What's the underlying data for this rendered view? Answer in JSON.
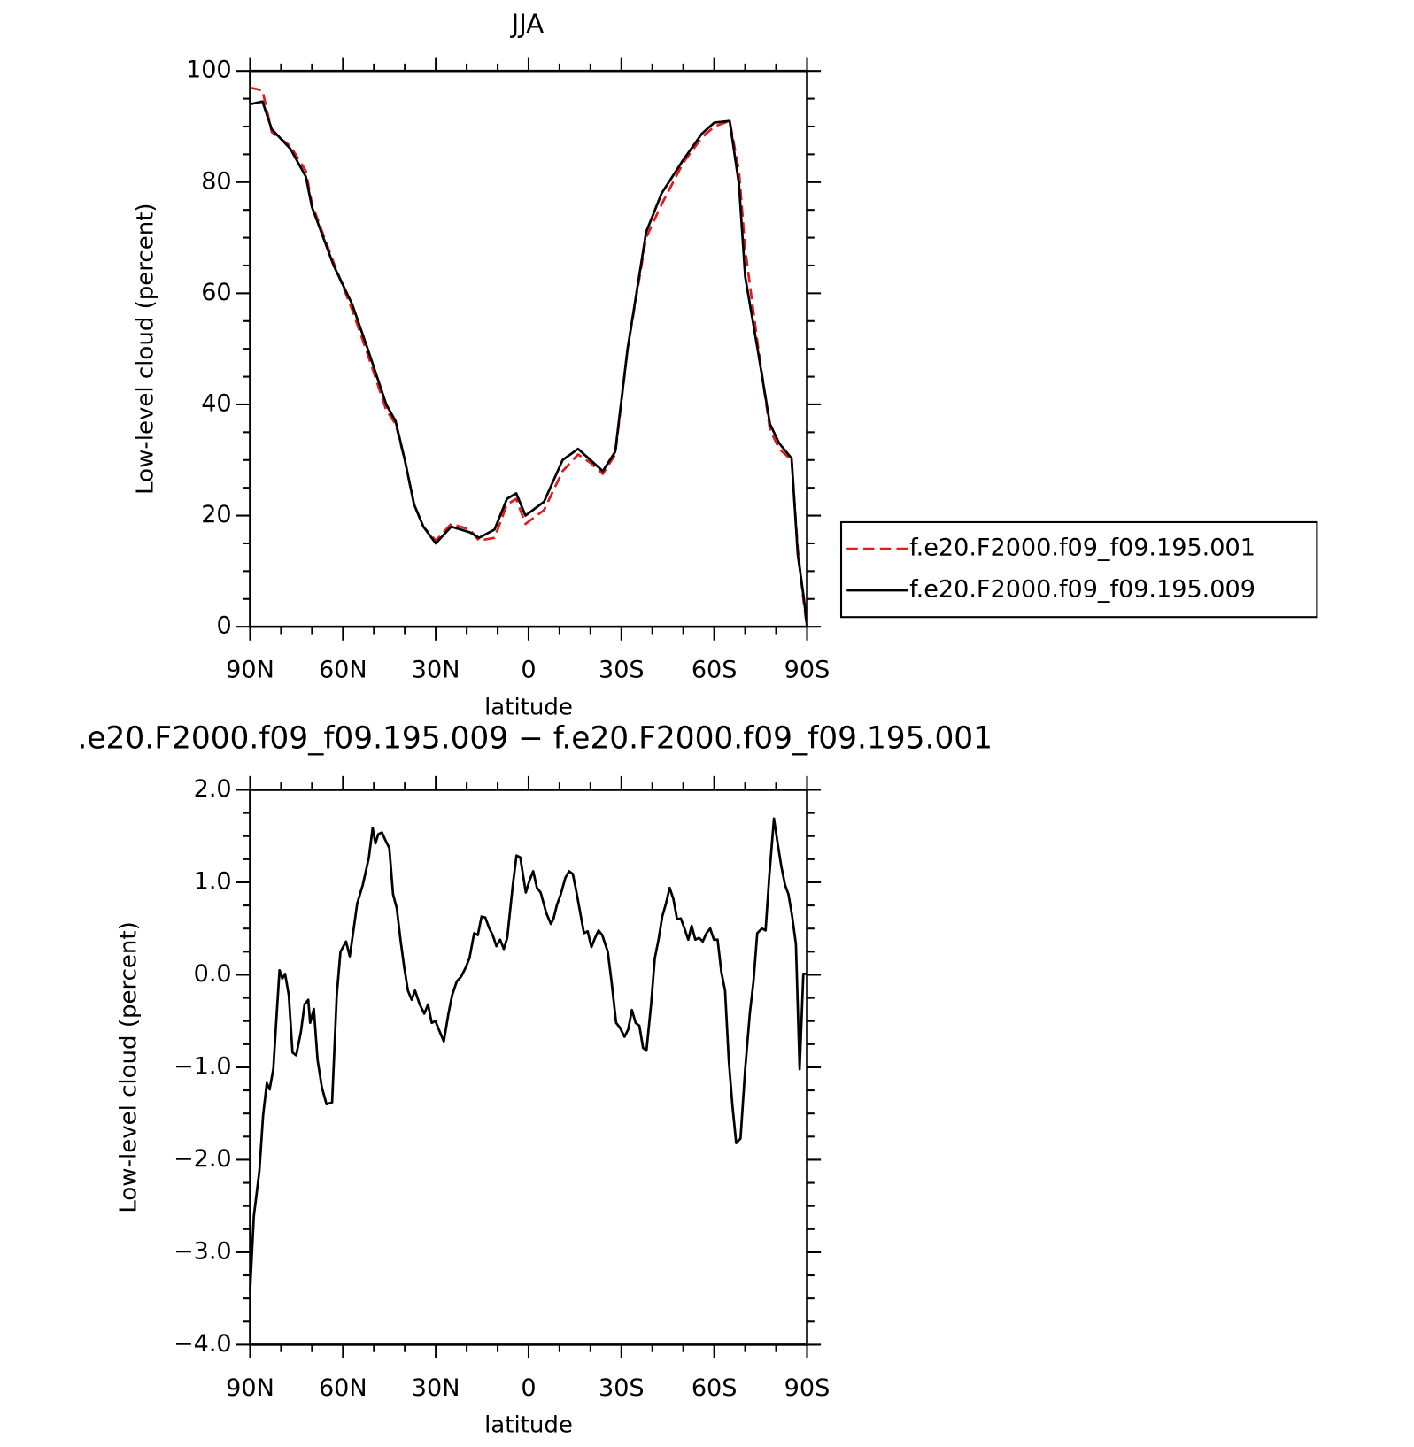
{
  "chart_data": [
    {
      "type": "line",
      "title": "JJA",
      "xlabel": "latitude",
      "ylabel": "Low-level cloud (percent)",
      "x": [
        90,
        86,
        83,
        77,
        72,
        70,
        63,
        57,
        52,
        46,
        43,
        40,
        37,
        34,
        30,
        25,
        19,
        16,
        11,
        7,
        4,
        1,
        -5,
        -11,
        -16,
        -20,
        -24,
        -28,
        -32,
        -38,
        -43,
        -50,
        -56,
        -60,
        -65,
        -68,
        -70,
        -74,
        -78,
        -81,
        -85,
        -87,
        -89,
        -90
      ],
      "series": [
        {
          "name": "f.e20.F2000.f09_f09.195.001",
          "color": "#e41a1c",
          "style": "dashed",
          "values": [
            97,
            96.5,
            89,
            86.5,
            82,
            76,
            65.5,
            57,
            49,
            39,
            36.5,
            30,
            22,
            18,
            15.5,
            18.5,
            17.5,
            15.5,
            16,
            22,
            23,
            18.5,
            21,
            28,
            31,
            29.5,
            27.5,
            31,
            50,
            70,
            76,
            83.5,
            88,
            90,
            91,
            82,
            68,
            51,
            35.5,
            32,
            30,
            14,
            4,
            0
          ]
        },
        {
          "name": "f.e20.F2000.f09_f09.195.009",
          "color": "#000000",
          "style": "solid",
          "values": [
            94,
            94.5,
            89.5,
            86,
            81,
            75.5,
            65,
            58,
            50,
            40,
            37,
            30,
            22,
            18,
            15,
            18,
            17,
            16,
            17.5,
            23,
            24,
            20,
            22.5,
            30,
            32,
            30,
            28,
            31.5,
            50,
            71,
            78,
            84,
            88.7,
            90.7,
            91,
            79.6,
            63,
            50,
            36.5,
            33,
            30.3,
            13,
            5,
            0
          ]
        }
      ],
      "xlim": [
        90,
        -90
      ],
      "xticks": [
        {
          "value": 90,
          "label": "90N"
        },
        {
          "value": 60,
          "label": "60N"
        },
        {
          "value": 30,
          "label": "30N"
        },
        0,
        {
          "value": -30,
          "label": "30S"
        },
        {
          "value": -60,
          "label": "60S"
        },
        {
          "value": -90,
          "label": "90S"
        }
      ],
      "ylim": [
        0,
        100
      ],
      "yticks": [
        0,
        20,
        40,
        60,
        80,
        100
      ],
      "legend": "right"
    },
    {
      "type": "line",
      "title": ".e20.F2000.f09_f09.195.009 − f.e20.F2000.f09_f09.195.001",
      "xlabel": "latitude",
      "ylabel": "Low-level cloud (percent)",
      "x": [
        90,
        88.8,
        87.0,
        85.8,
        84.6,
        83.7,
        82.5,
        81.4,
        80.5,
        79.6,
        78.7,
        77.5,
        76.3,
        75.1,
        73.6,
        72.4,
        71.2,
        70.6,
        69.4,
        68.2,
        66.8,
        65.3,
        63.5,
        62.0,
        60.8,
        59.0,
        57.8,
        56.6,
        55.4,
        53.6,
        51.6,
        50.4,
        49.5,
        48.6,
        47.4,
        46.2,
        45.0,
        43.8,
        42.6,
        41.4,
        40.2,
        39.0,
        37.8,
        36.7,
        35.2,
        33.7,
        32.5,
        31.3,
        30.1,
        28.9,
        27.4,
        25.9,
        24.7,
        23.2,
        21.8,
        20.3,
        19.1,
        17.6,
        16.4,
        15.2,
        14.0,
        12.8,
        11.6,
        10.4,
        9.2,
        8.0,
        6.9,
        5.1,
        3.9,
        2.7,
        0.9,
        -0.3,
        -1.5,
        -2.7,
        -3.9,
        -5.7,
        -7.2,
        -8.0,
        -9.2,
        -10.4,
        -11.9,
        -13.1,
        -14.3,
        -15.5,
        -16.7,
        -17.9,
        -19.1,
        -20.3,
        -21.5,
        -22.6,
        -23.8,
        -25.6,
        -26.8,
        -28.3,
        -29.5,
        -31.0,
        -32.2,
        -33.4,
        -34.6,
        -35.8,
        -37.0,
        -38.1,
        -39.6,
        -40.8,
        -42.0,
        -43.2,
        -44.4,
        -45.6,
        -46.8,
        -48.0,
        -49.2,
        -50.4,
        -51.6,
        -52.7,
        -53.9,
        -55.1,
        -56.3,
        -57.5,
        -58.7,
        -59.9,
        -61.1,
        -62.3,
        -63.5,
        -64.7,
        -65.9,
        -67.1,
        -68.5,
        -70.0,
        -71.5,
        -72.7,
        -73.9,
        -75.4,
        -76.6,
        -77.8,
        -79.3,
        -80.5,
        -81.7,
        -82.9,
        -84.0,
        -85.2,
        -86.4,
        -87.6,
        -88.8,
        -90
      ],
      "series": [
        {
          "color": "#000000",
          "style": "solid",
          "values": [
            -3.41,
            -2.61,
            -2.12,
            -1.52,
            -1.17,
            -1.24,
            -1.02,
            -0.42,
            0.05,
            -0.04,
            0.01,
            -0.22,
            -0.84,
            -0.87,
            -0.62,
            -0.32,
            -0.27,
            -0.52,
            -0.37,
            -0.92,
            -1.22,
            -1.4,
            -1.38,
            -0.22,
            0.25,
            0.36,
            0.2,
            0.48,
            0.77,
            0.97,
            1.27,
            1.59,
            1.42,
            1.52,
            1.54,
            1.45,
            1.37,
            0.87,
            0.72,
            0.38,
            0.08,
            -0.17,
            -0.27,
            -0.17,
            -0.32,
            -0.42,
            -0.32,
            -0.52,
            -0.5,
            -0.6,
            -0.72,
            -0.42,
            -0.22,
            -0.07,
            -0.02,
            0.08,
            0.18,
            0.45,
            0.43,
            0.63,
            0.62,
            0.51,
            0.43,
            0.31,
            0.38,
            0.28,
            0.4,
            0.97,
            1.29,
            1.27,
            0.89,
            1.02,
            1.12,
            0.94,
            0.89,
            0.67,
            0.55,
            0.6,
            0.76,
            0.87,
            1.05,
            1.12,
            1.09,
            0.89,
            0.67,
            0.45,
            0.47,
            0.3,
            0.4,
            0.48,
            0.43,
            0.25,
            -0.07,
            -0.52,
            -0.57,
            -0.67,
            -0.59,
            -0.38,
            -0.52,
            -0.55,
            -0.79,
            -0.82,
            -0.32,
            0.18,
            0.38,
            0.63,
            0.77,
            0.94,
            0.82,
            0.6,
            0.61,
            0.5,
            0.38,
            0.53,
            0.38,
            0.4,
            0.36,
            0.45,
            0.5,
            0.38,
            0.38,
            0.03,
            -0.17,
            -0.92,
            -1.42,
            -1.82,
            -1.77,
            -1.02,
            -0.42,
            -0.07,
            0.45,
            0.5,
            0.48,
            1.07,
            1.69,
            1.42,
            1.17,
            0.97,
            0.87,
            0.63,
            0.33,
            -1.02,
            0.01,
            0.01
          ]
        }
      ],
      "xlim": [
        90,
        -90
      ],
      "xticks": [
        {
          "value": 90,
          "label": "90N"
        },
        {
          "value": 60,
          "label": "60N"
        },
        {
          "value": 30,
          "label": "30N"
        },
        0,
        {
          "value": -30,
          "label": "30S"
        },
        {
          "value": -60,
          "label": "60S"
        },
        {
          "value": -90,
          "label": "90S"
        }
      ],
      "ylim": [
        -4,
        2
      ],
      "yticks": [
        {
          "value": -4,
          "label": "−4.0"
        },
        {
          "value": -3,
          "label": "−3.0"
        },
        {
          "value": -2,
          "label": "−2.0"
        },
        {
          "value": -1,
          "label": "−1.0"
        },
        {
          "value": 0,
          "label": "0.0"
        },
        {
          "value": 1,
          "label": "1.0"
        },
        {
          "value": 2,
          "label": "2.0"
        }
      ]
    }
  ]
}
